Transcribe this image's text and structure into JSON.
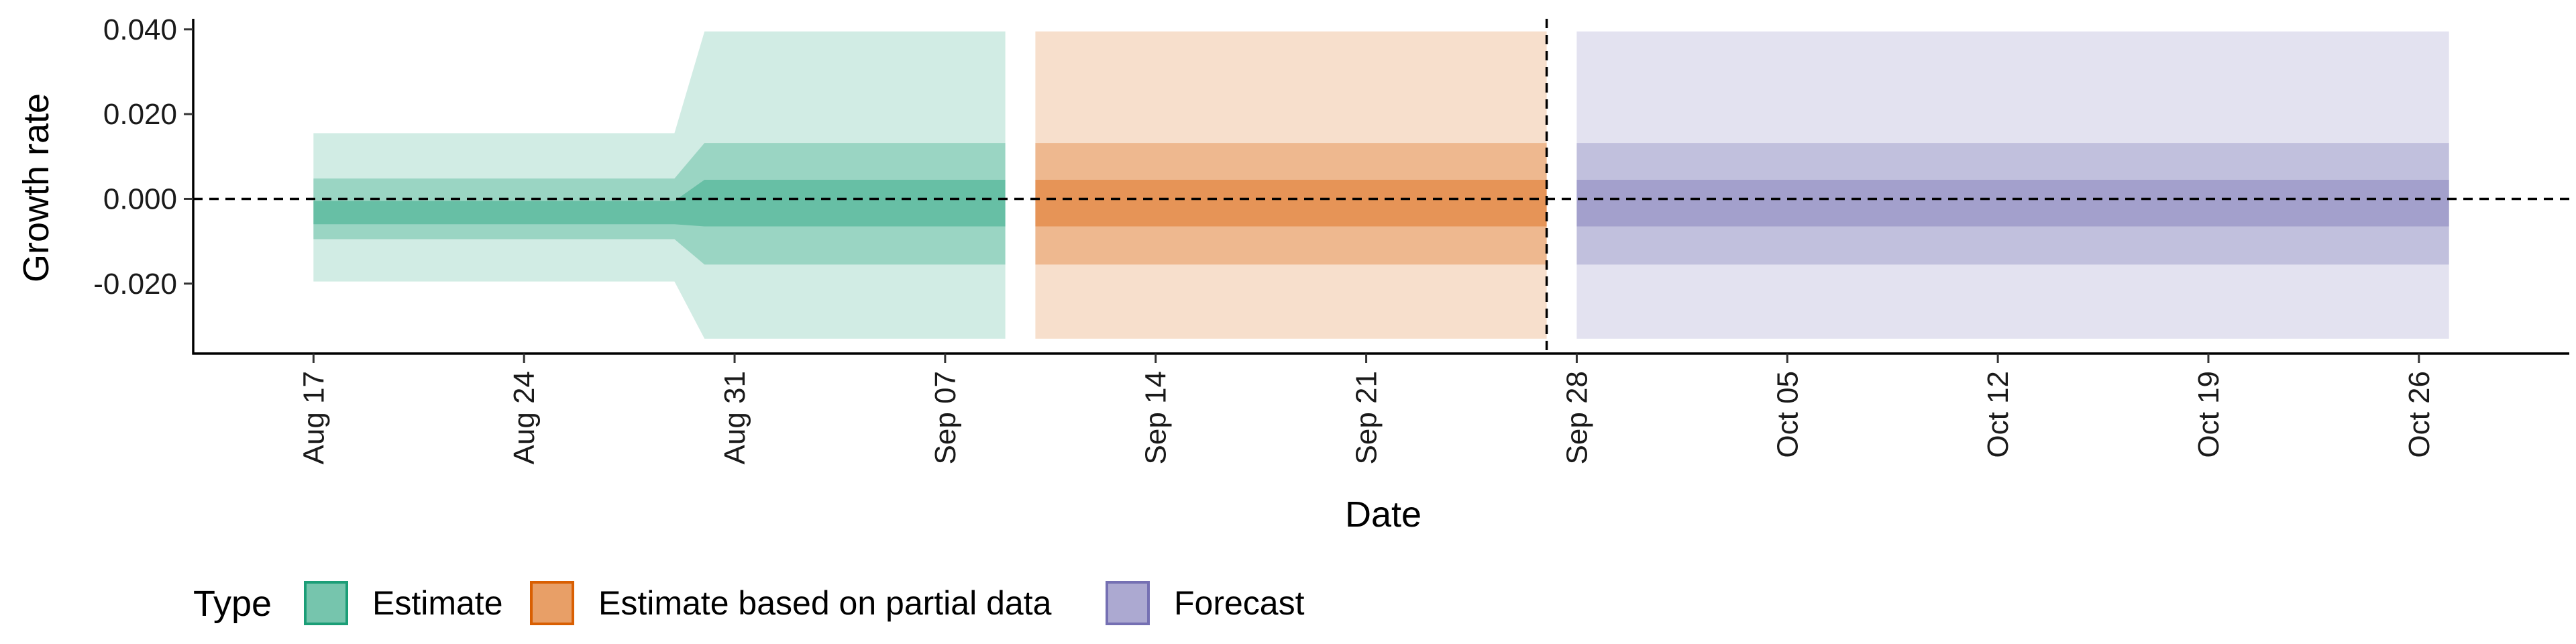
{
  "chart_data": {
    "type": "area",
    "xlabel": "Date",
    "ylabel": "Growth rate",
    "x_axis_type": "date",
    "x_ticks": [
      "2020-08-17",
      "2020-08-24",
      "2020-08-31",
      "2020-09-07",
      "2020-09-14",
      "2020-09-21",
      "2020-09-28",
      "2020-10-05",
      "2020-10-12",
      "2020-10-19",
      "2020-10-26"
    ],
    "x_tick_labels": [
      "Aug 17",
      "Aug 24",
      "Aug 31",
      "Sep 07",
      "Sep 14",
      "Sep 21",
      "Sep 28",
      "Oct 05",
      "Oct 12",
      "Oct 19",
      "Oct 26"
    ],
    "xlim": [
      "2020-08-13",
      "2020-10-31"
    ],
    "y_ticks": [
      -0.02,
      0.0,
      0.02,
      0.04
    ],
    "y_tick_labels": [
      "-0.020",
      "0.000",
      "0.020",
      "0.040"
    ],
    "ylim": [
      -0.0365,
      0.0425
    ],
    "reference_lines": [
      {
        "orientation": "horizontal",
        "y": 0.0,
        "style": "dashed"
      },
      {
        "orientation": "vertical",
        "x": "2020-09-27",
        "style": "dashed"
      }
    ],
    "series": [
      {
        "name": "Estimate",
        "color": "#1b9e77",
        "x": [
          "2020-08-17",
          "2020-08-29",
          "2020-08-30",
          "2020-09-09"
        ],
        "bands": [
          {
            "lower": [
              -0.0195,
              -0.0195,
              -0.033,
              -0.033
            ],
            "upper": [
              0.0155,
              0.0155,
              0.0395,
              0.0395
            ],
            "opacity": 0.2
          },
          {
            "lower": [
              -0.0095,
              -0.0095,
              -0.0155,
              -0.0155
            ],
            "upper": [
              0.0048,
              0.0048,
              0.0132,
              0.0132
            ],
            "opacity": 0.3
          },
          {
            "lower": [
              -0.006,
              -0.006,
              -0.0065,
              -0.0065
            ],
            "upper": [
              -0.0005,
              -0.0005,
              0.0045,
              0.0045
            ],
            "opacity": 0.4
          }
        ]
      },
      {
        "name": "Estimate based on partial data",
        "color": "#d95f02",
        "x": [
          "2020-09-10",
          "2020-09-27"
        ],
        "bands": [
          {
            "lower": [
              -0.033,
              -0.033
            ],
            "upper": [
              0.0395,
              0.0395
            ],
            "opacity": 0.2
          },
          {
            "lower": [
              -0.0155,
              -0.0155
            ],
            "upper": [
              0.0132,
              0.0132
            ],
            "opacity": 0.3
          },
          {
            "lower": [
              -0.0065,
              -0.0065
            ],
            "upper": [
              0.0045,
              0.0045
            ],
            "opacity": 0.4
          }
        ]
      },
      {
        "name": "Forecast",
        "color": "#7570b3",
        "x": [
          "2020-09-28",
          "2020-10-27"
        ],
        "bands": [
          {
            "lower": [
              -0.033,
              -0.033
            ],
            "upper": [
              0.0395,
              0.0395
            ],
            "opacity": 0.2
          },
          {
            "lower": [
              -0.0155,
              -0.0155
            ],
            "upper": [
              0.0132,
              0.0132
            ],
            "opacity": 0.3
          },
          {
            "lower": [
              -0.0065,
              -0.0065
            ],
            "upper": [
              0.0045,
              0.0045
            ],
            "opacity": 0.4
          }
        ]
      }
    ],
    "legend": {
      "title": "Type",
      "placement": "bottom",
      "entries": [
        {
          "label": "Estimate",
          "color": "#1b9e77"
        },
        {
          "label": "Estimate based on partial data",
          "color": "#d95f02"
        },
        {
          "label": "Forecast",
          "color": "#7570b3"
        }
      ]
    },
    "grid": false
  }
}
